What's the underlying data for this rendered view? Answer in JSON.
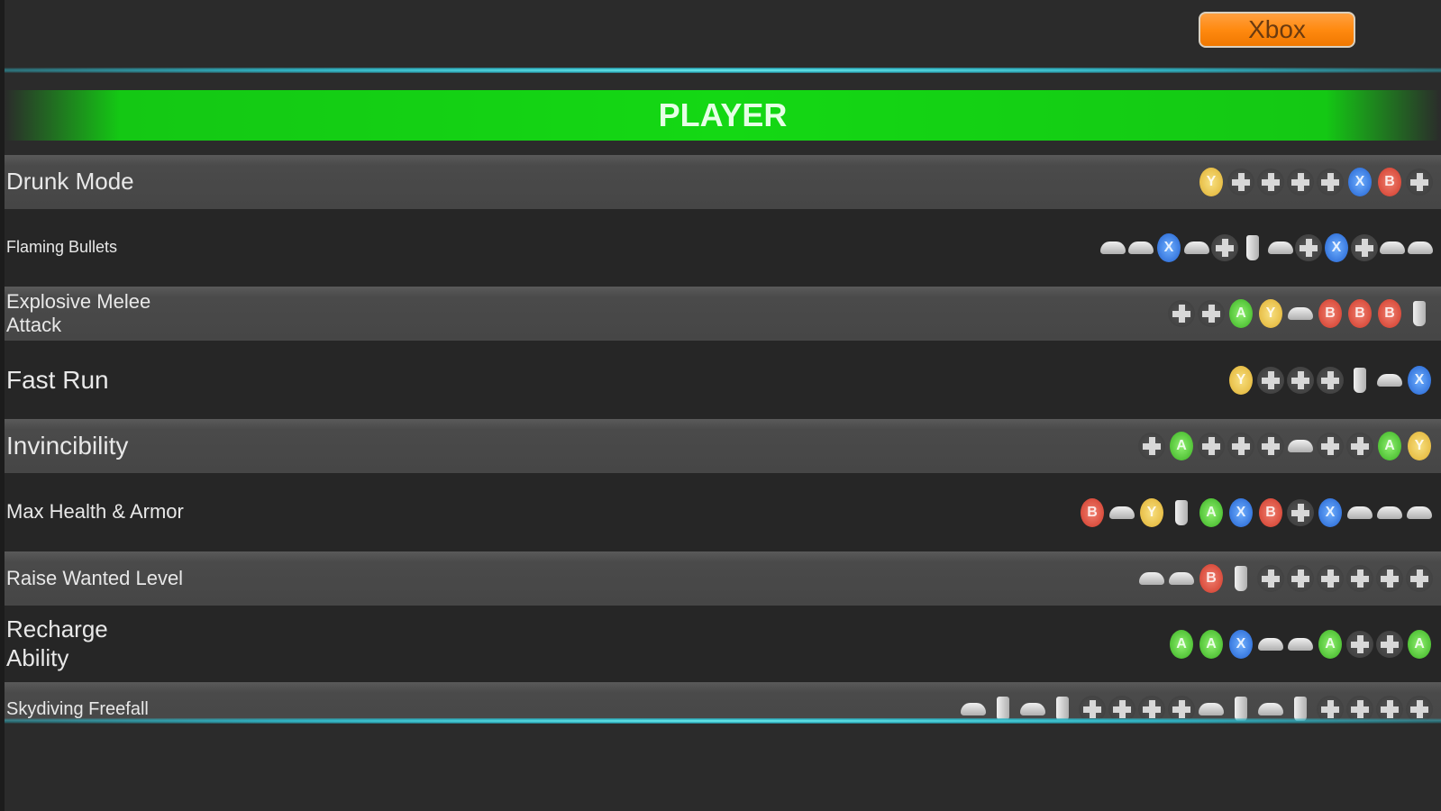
{
  "header": {
    "platform_button": "Xbox"
  },
  "section": {
    "title": "PLAYER"
  },
  "colors": {
    "accent_green": "#14d814",
    "platform_orange": "#ff8a10",
    "glow_cyan": "#6ff0f0",
    "Y": "#e0b030",
    "B": "#d03828",
    "A": "#38b020",
    "X": "#2060d0"
  },
  "cheats": [
    {
      "name": "Drunk Mode",
      "buttons": [
        "Y",
        "dpad",
        "dpad",
        "dpad",
        "dpad",
        "X",
        "B",
        "dpad"
      ]
    },
    {
      "name": "Flaming Bullets",
      "buttons": [
        "LB",
        "RB",
        "X",
        "RB",
        "dpad",
        "RT",
        "RB",
        "dpad",
        "X",
        "dpad",
        "LB",
        "LB"
      ]
    },
    {
      "name": "Explosive Melee Attack",
      "buttons": [
        "dpad",
        "dpad",
        "A",
        "Y",
        "RB",
        "B",
        "B",
        "B",
        "LT"
      ]
    },
    {
      "name": "Fast Run",
      "buttons": [
        "Y",
        "dpad",
        "dpad",
        "dpad",
        "LT",
        "LB",
        "X"
      ]
    },
    {
      "name": "Invincibility",
      "buttons": [
        "dpad",
        "A",
        "dpad",
        "dpad",
        "dpad",
        "RB",
        "dpad",
        "dpad",
        "A",
        "Y"
      ]
    },
    {
      "name": "Max Health & Armor",
      "buttons": [
        "B",
        "LB",
        "Y",
        "RT",
        "A",
        "X",
        "B",
        "dpad",
        "X",
        "LB",
        "LB",
        "LB"
      ]
    },
    {
      "name": "Raise Wanted Level",
      "buttons": [
        "RB",
        "RB",
        "B",
        "RT",
        "dpad",
        "dpad",
        "dpad",
        "dpad",
        "dpad",
        "dpad"
      ]
    },
    {
      "name": "Recharge Ability",
      "buttons": [
        "A",
        "A",
        "X",
        "RB",
        "LB",
        "A",
        "dpad",
        "dpad",
        "A"
      ]
    },
    {
      "name": "Skydiving Freefall",
      "buttons": [
        "LB",
        "LT",
        "RB",
        "RT",
        "dpad",
        "dpad",
        "dpad",
        "dpad",
        "LB",
        "LT",
        "RB",
        "RT",
        "dpad",
        "dpad",
        "dpad",
        "dpad"
      ]
    }
  ]
}
